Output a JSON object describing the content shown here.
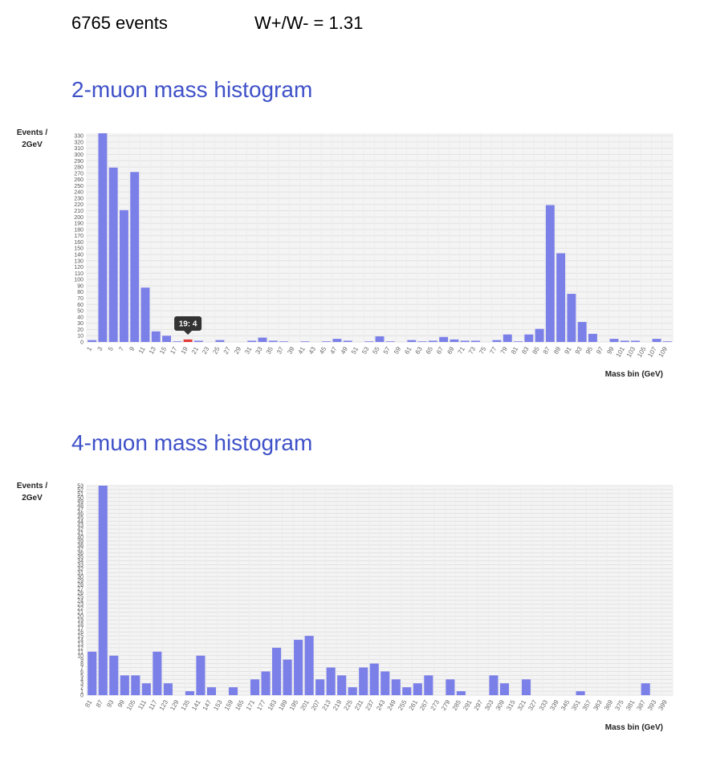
{
  "header": {
    "events": "6765 events",
    "ratio": "W+/W- = 1.31"
  },
  "tooltip": "19: 4",
  "colors": {
    "bar": "#7b7fe8",
    "highlight": "#e53935",
    "title": "#3f51c8"
  },
  "chart_data": [
    {
      "type": "bar",
      "title": "2-muon mass histogram",
      "ylabel": "Events / 2GeV",
      "xlabel": "Mass bin (GeV)",
      "ylim": [
        0,
        334
      ],
      "highlight": "19",
      "categories": [
        "1",
        "3",
        "5",
        "7",
        "9",
        "11",
        "13",
        "15",
        "17",
        "19",
        "21",
        "23",
        "25",
        "27",
        "29",
        "31",
        "33",
        "35",
        "37",
        "39",
        "41",
        "43",
        "45",
        "47",
        "49",
        "51",
        "53",
        "55",
        "57",
        "59",
        "61",
        "63",
        "65",
        "67",
        "69",
        "71",
        "73",
        "75",
        "77",
        "79",
        "81",
        "83",
        "85",
        "87",
        "89",
        "91",
        "93",
        "95",
        "97",
        "99",
        "101",
        "103",
        "105",
        "107",
        "109"
      ],
      "values": [
        3,
        334,
        279,
        211,
        272,
        87,
        17,
        10,
        1,
        4,
        2,
        0,
        3,
        0,
        0,
        2,
        7,
        2,
        1,
        0,
        1,
        0,
        1,
        5,
        2,
        0,
        1,
        9,
        1,
        0,
        3,
        1,
        2,
        8,
        4,
        2,
        2,
        0,
        3,
        12,
        1,
        12,
        21,
        219,
        142,
        77,
        32,
        13,
        0,
        5,
        2,
        2,
        0,
        5,
        1
      ]
    },
    {
      "type": "bar",
      "title": "4-muon mass histogram",
      "ylabel": "Events / 2GeV",
      "xlabel": "Mass bin (GeV)",
      "ylim": [
        0,
        53
      ],
      "categories": [
        "81",
        "87",
        "93",
        "99",
        "105",
        "111",
        "117",
        "123",
        "129",
        "135",
        "141",
        "147",
        "153",
        "159",
        "165",
        "171",
        "177",
        "183",
        "189",
        "195",
        "201",
        "207",
        "213",
        "219",
        "225",
        "231",
        "237",
        "243",
        "249",
        "255",
        "261",
        "267",
        "273",
        "279",
        "285",
        "291",
        "297",
        "303",
        "309",
        "315",
        "321",
        "327",
        "333",
        "339",
        "345",
        "351",
        "357",
        "363",
        "369",
        "375",
        "381",
        "387",
        "393",
        "399"
      ],
      "values": [
        11,
        53,
        10,
        5,
        5,
        3,
        11,
        3,
        0,
        1,
        10,
        2,
        0,
        2,
        0,
        4,
        6,
        12,
        9,
        14,
        15,
        4,
        7,
        5,
        2,
        7,
        8,
        6,
        4,
        2,
        3,
        5,
        0,
        4,
        1,
        0,
        0,
        5,
        3,
        0,
        4,
        0,
        0,
        0,
        0,
        1,
        0,
        0,
        0,
        0,
        0,
        3,
        0,
        0
      ]
    }
  ]
}
